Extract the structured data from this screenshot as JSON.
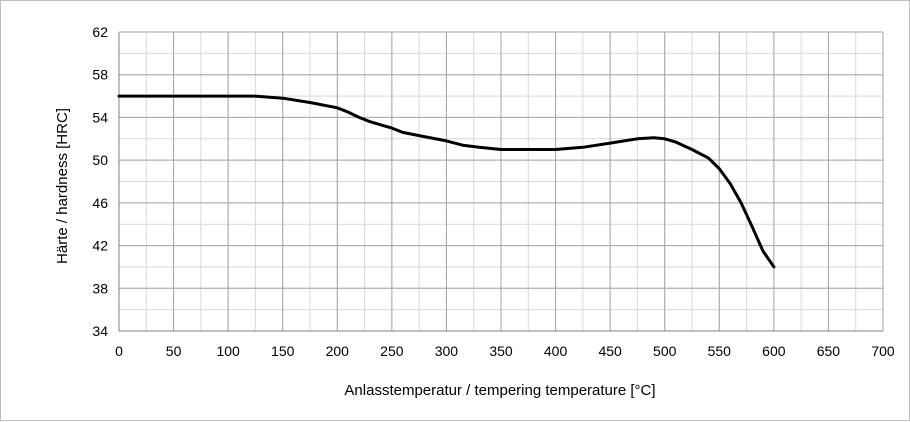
{
  "chart_data": {
    "type": "line",
    "title": "",
    "xlabel": "Anlasstemperatur / tempering temperature [°C]",
    "ylabel": "Härte / hardness [HRC]",
    "xlim": [
      0,
      700
    ],
    "ylim": [
      34,
      62
    ],
    "x_ticks": [
      "0",
      "50",
      "100",
      "150",
      "200",
      "250",
      "300",
      "350",
      "400",
      "450",
      "500",
      "550",
      "600",
      "650",
      "700"
    ],
    "y_ticks": [
      "34",
      "38",
      "42",
      "46",
      "50",
      "54",
      "58",
      "62"
    ],
    "x_minor_step": 25,
    "y_minor_step": 2,
    "grid": true,
    "legend": "none",
    "line_color": "#000000",
    "grid_major_color": "#a6a6a6",
    "grid_minor_color": "#d9d9d9",
    "series": [
      {
        "x": [
          0,
          50,
          100,
          125,
          150,
          175,
          200,
          210,
          220,
          230,
          250,
          260,
          275,
          300,
          315,
          330,
          350,
          375,
          400,
          425,
          450,
          475,
          490,
          500,
          510,
          525,
          540,
          550,
          560,
          570,
          580,
          590,
          600
        ],
        "values": [
          56,
          56,
          56,
          56,
          55.8,
          55.4,
          54.9,
          54.5,
          54,
          53.6,
          53,
          52.6,
          52.3,
          51.8,
          51.4,
          51.2,
          51,
          51,
          51,
          51.2,
          51.6,
          52,
          52.1,
          52,
          51.7,
          51,
          50.2,
          49.2,
          47.8,
          46,
          43.8,
          41.5,
          40
        ]
      }
    ]
  }
}
